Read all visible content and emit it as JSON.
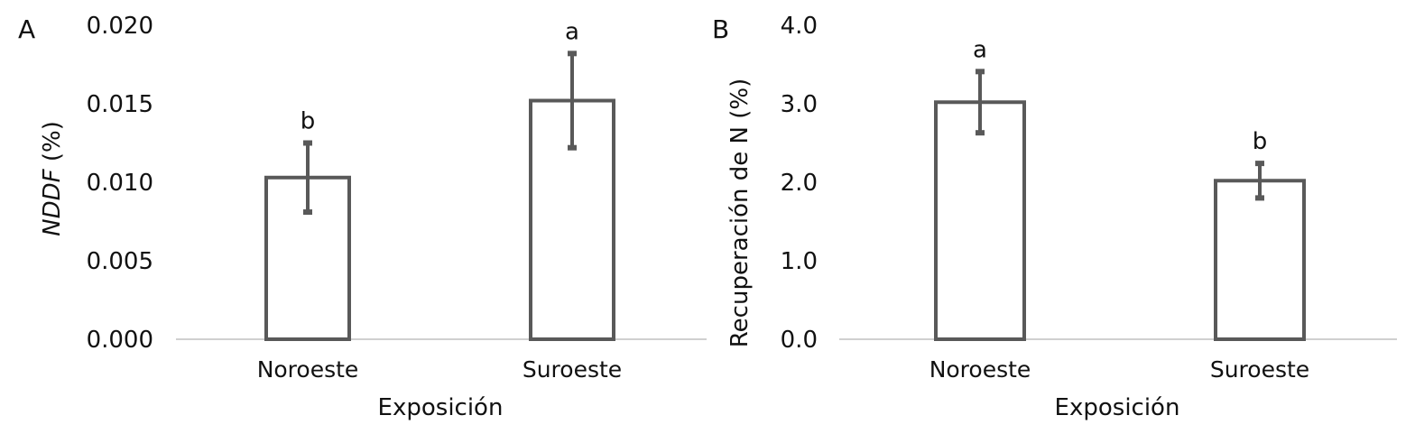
{
  "chart_data": [
    {
      "type": "bar",
      "panel_label": "A",
      "categories": [
        "Noroeste",
        "Suroeste"
      ],
      "values": [
        0.0103,
        0.0152
      ],
      "errors": [
        0.0022,
        0.003
      ],
      "significance": [
        "b",
        "a"
      ],
      "xlabel": "Exposición",
      "ylabel_italic": "NDDF",
      "ylabel_rest": " (%)",
      "ylim": [
        0,
        0.02
      ],
      "yticks": [
        "0.000",
        "0.005",
        "0.010",
        "0.015",
        "0.020"
      ],
      "ytick_values": [
        0,
        0.005,
        0.01,
        0.015,
        0.02
      ],
      "grid": false
    },
    {
      "type": "bar",
      "panel_label": "B",
      "categories": [
        "Noroeste",
        "Suroeste"
      ],
      "values": [
        3.02,
        2.02
      ],
      "errors": [
        0.39,
        0.22
      ],
      "significance": [
        "a",
        "b"
      ],
      "xlabel": "Exposición",
      "ylabel": "Recuperación de N (%)",
      "ylim": [
        0,
        4
      ],
      "yticks": [
        "0.0",
        "1.0",
        "2.0",
        "3.0",
        "4.0"
      ],
      "ytick_values": [
        0,
        1,
        2,
        3,
        4
      ],
      "grid": false
    }
  ],
  "colors": {
    "bar_fill": "#ffffff",
    "bar_stroke": "#595959",
    "axis": "#d0d0d0",
    "text": "#111111"
  }
}
